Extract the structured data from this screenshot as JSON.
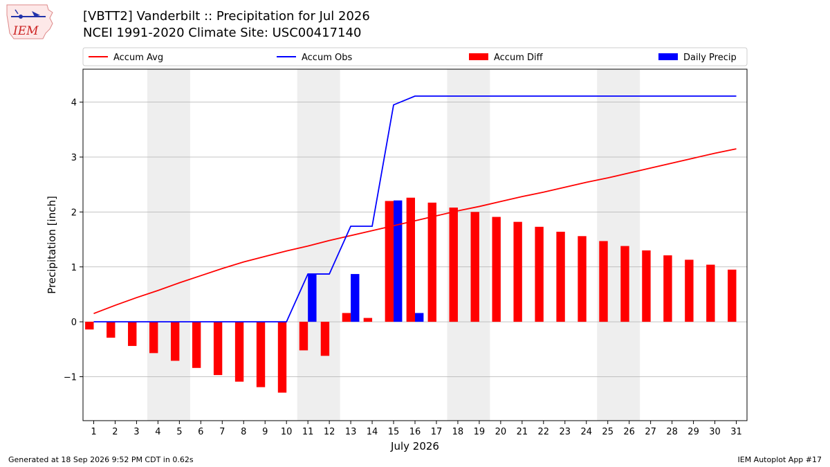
{
  "header": {
    "title_line1": "[VBTT2] Vanderbilt :: Precipitation for Jul 2026",
    "title_line2": "NCEI 1991-2020 Climate Site: USC00417140",
    "logo_text": "IEM"
  },
  "footer": {
    "left": "Generated at 18 Sep 2026 9:52 PM CDT in 0.62s",
    "right": "IEM Autoplot App #17"
  },
  "chart_data": {
    "type": "bar",
    "xlabel": "July 2026",
    "ylabel": "Precipitation [inch]",
    "ylim": [
      -1.8,
      4.6
    ],
    "yticks": [
      -1,
      0,
      1,
      2,
      3,
      4
    ],
    "ytick_labels": [
      "−1",
      "0",
      "1",
      "2",
      "3",
      "4"
    ],
    "xlim": [
      0.5,
      31.5
    ],
    "grid": "horizontal",
    "legend_position": "top",
    "shaded_weekend_days": [
      [
        4,
        5
      ],
      [
        11,
        12
      ],
      [
        18,
        19
      ],
      [
        25,
        26
      ]
    ],
    "x": [
      1,
      2,
      3,
      4,
      5,
      6,
      7,
      8,
      9,
      10,
      11,
      12,
      13,
      14,
      15,
      16,
      17,
      18,
      19,
      20,
      21,
      22,
      23,
      24,
      25,
      26,
      27,
      28,
      29,
      30,
      31
    ],
    "series": [
      {
        "name": "Accum Avg",
        "kind": "line",
        "color": "#ff0000",
        "values": [
          0.15,
          0.3,
          0.44,
          0.57,
          0.71,
          0.84,
          0.97,
          1.09,
          1.19,
          1.29,
          1.38,
          1.48,
          1.57,
          1.66,
          1.75,
          1.84,
          1.93,
          2.02,
          2.1,
          2.19,
          2.28,
          2.36,
          2.45,
          2.54,
          2.62,
          2.71,
          2.8,
          2.89,
          2.98,
          3.07,
          3.15
        ]
      },
      {
        "name": "Accum Obs",
        "kind": "line",
        "color": "#0000ff",
        "values": [
          0,
          0,
          0,
          0,
          0,
          0,
          0,
          0,
          0,
          0,
          0.87,
          0.87,
          1.74,
          1.74,
          3.95,
          4.11,
          4.11,
          4.11,
          4.11,
          4.11,
          4.11,
          4.11,
          4.11,
          4.11,
          4.11,
          4.11,
          4.11,
          4.11,
          4.11,
          4.11,
          4.11
        ]
      },
      {
        "name": "Accum Diff",
        "kind": "bar",
        "color": "#ff0000",
        "values": [
          -0.14,
          -0.29,
          -0.44,
          -0.57,
          -0.71,
          -0.84,
          -0.97,
          -1.09,
          -1.19,
          -1.29,
          -0.52,
          -0.62,
          0.16,
          0.07,
          2.2,
          2.26,
          2.17,
          2.08,
          2.0,
          1.91,
          1.82,
          1.73,
          1.64,
          1.56,
          1.47,
          1.38,
          1.3,
          1.21,
          1.13,
          1.04,
          0.95
        ]
      },
      {
        "name": "Daily Precip",
        "kind": "bar",
        "color": "#0000ff",
        "values": [
          0,
          0,
          0,
          0,
          0,
          0,
          0,
          0,
          0,
          0,
          0.87,
          0,
          0.87,
          0,
          2.21,
          0.16,
          0,
          0,
          0,
          0,
          0,
          0,
          0,
          0,
          0,
          0,
          0,
          0,
          0,
          0,
          0
        ]
      }
    ]
  }
}
